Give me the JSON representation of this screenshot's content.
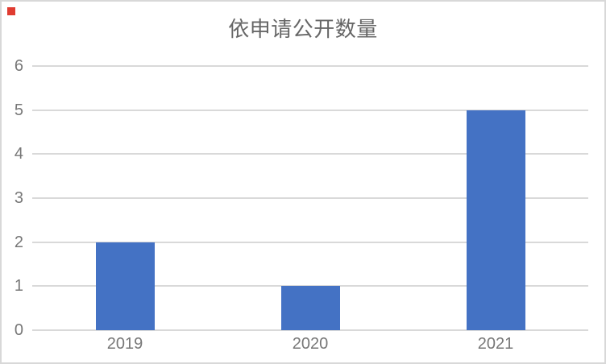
{
  "frame": {
    "background": "#ffffff",
    "border_color": "#d8d8d8"
  },
  "corner_marker": {
    "color": "#e03c31"
  },
  "chart_data": {
    "type": "bar",
    "title": "依申请公开数量",
    "categories": [
      "2019",
      "2020",
      "2021"
    ],
    "values": [
      2,
      1,
      5
    ],
    "ylim": [
      0,
      6
    ],
    "yticks": [
      0,
      1,
      2,
      3,
      4,
      5,
      6
    ],
    "xlabel": "",
    "ylabel": "",
    "grid": true,
    "legend": false,
    "bar_color": "#4472c4",
    "gridline_color": "#d9d9d9",
    "axis_text_color": "#777777",
    "title_color": "#666666"
  }
}
